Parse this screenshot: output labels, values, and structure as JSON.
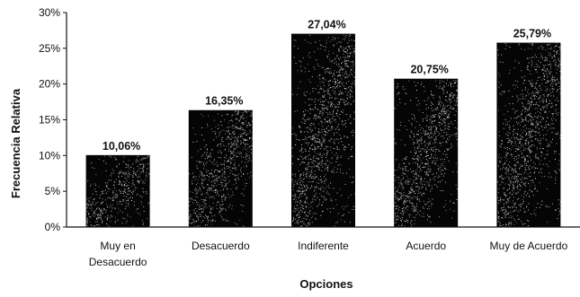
{
  "chart_data": {
    "type": "bar",
    "categories": [
      "Muy en Desacuerdo",
      "Desacuerdo",
      "Indiferente",
      "Acuerdo",
      "Muy de Acuerdo"
    ],
    "category_lines": [
      [
        "Muy en",
        "Desacuerdo"
      ],
      [
        "Desacuerdo"
      ],
      [
        "Indiferente"
      ],
      [
        "Acuerdo"
      ],
      [
        "Muy de Acuerdo"
      ]
    ],
    "values": [
      10.06,
      16.35,
      27.04,
      20.75,
      25.79
    ],
    "data_labels": [
      "10,06%",
      "16,35%",
      "27,04%",
      "20,75%",
      "25,79%"
    ],
    "xlabel": "Opciones",
    "ylabel": "Frecuencia Relativa",
    "ylim": [
      0,
      30
    ],
    "yticks": [
      0,
      5,
      10,
      15,
      20,
      25,
      30
    ],
    "ytick_labels": [
      "0%",
      "5%",
      "10%",
      "15%",
      "20%",
      "25%",
      "30%"
    ],
    "grid": false,
    "bar_color": "#050505",
    "texture_color": "#d8d8d8"
  }
}
